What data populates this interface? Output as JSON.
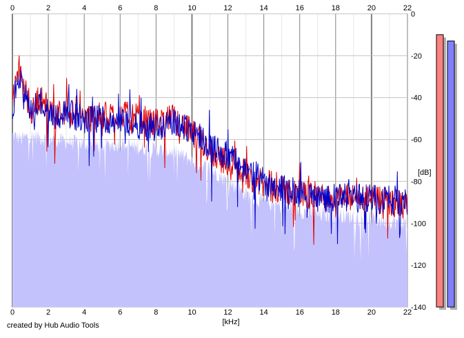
{
  "footer": {
    "credit": "created by Hub Audio Tools"
  },
  "colors": {
    "fill": "#c4c2fc",
    "left": "#e00000",
    "right": "#0000c8",
    "grid": "#c0c0c0",
    "grid_major": "#808080",
    "meter_left": "#ff8080",
    "meter_right": "#8080ff",
    "meter_shadow": "#b0b0b0"
  },
  "chart_data": {
    "type": "area",
    "x_unit_label": "[kHz]",
    "y_unit_label": "[dB]",
    "xlim": [
      0,
      22
    ],
    "ylim": [
      -140,
      0
    ],
    "x_ticks": [
      "0",
      "2",
      "4",
      "6",
      "8",
      "10",
      "12",
      "14",
      "16",
      "18",
      "20",
      "22"
    ],
    "x_tick_values": [
      0,
      2,
      4,
      6,
      8,
      10,
      12,
      14,
      16,
      18,
      20,
      22
    ],
    "y_ticks": [
      "0",
      "-20",
      "-40",
      "-60",
      "-80",
      "-100",
      "-120",
      "-140"
    ],
    "y_tick_values": [
      0,
      -20,
      -40,
      -60,
      -80,
      -100,
      -120,
      -140
    ],
    "grid": true,
    "series": [
      {
        "channel": "left",
        "x": [
          0,
          0.25,
          0.5,
          1,
          1.5,
          2,
          2.5,
          3,
          4,
          5,
          6,
          7,
          8,
          9,
          10,
          11,
          12,
          13,
          14,
          15,
          16,
          17,
          18,
          19,
          20,
          21,
          22
        ],
        "values": [
          -44,
          -30,
          -28,
          -48,
          -40,
          -45,
          -48,
          -46,
          -50,
          -49,
          -48,
          -50,
          -52,
          -50,
          -57,
          -65,
          -72,
          -76,
          -82,
          -84,
          -86,
          -87,
          -88,
          -88,
          -89,
          -90,
          -92
        ]
      },
      {
        "channel": "right",
        "x": [
          0,
          0.25,
          0.5,
          1,
          1.5,
          2,
          2.5,
          3,
          4,
          5,
          6,
          7,
          8,
          9,
          10,
          11,
          12,
          13,
          14,
          15,
          16,
          17,
          18,
          19,
          20,
          21,
          22
        ],
        "values": [
          -46,
          -33,
          -32,
          -48,
          -41,
          -46,
          -49,
          -47,
          -51,
          -50,
          -51,
          -53,
          -54,
          -52,
          -55,
          -63,
          -68,
          -74,
          -80,
          -83,
          -86,
          -88,
          -88,
          -88,
          -88,
          -89,
          -90
        ]
      }
    ],
    "floor_series": {
      "x": [
        0,
        0.5,
        1,
        2,
        3,
        4,
        5,
        6,
        7,
        8,
        9,
        10,
        11,
        12,
        13,
        14,
        15,
        16,
        17,
        18,
        19,
        20,
        21,
        22
      ],
      "values": [
        -58,
        -60,
        -58,
        -60,
        -61,
        -62,
        -63,
        -62,
        -64,
        -65,
        -66,
        -70,
        -74,
        -80,
        -86,
        -90,
        -92,
        -94,
        -96,
        -96,
        -97,
        -98,
        -99,
        -100
      ]
    },
    "level_meters": [
      {
        "channel": "left",
        "level_db": -10
      },
      {
        "channel": "right",
        "level_db": -13
      }
    ]
  }
}
